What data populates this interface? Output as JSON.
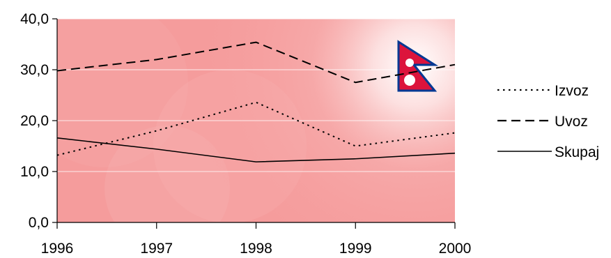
{
  "chart_data": {
    "type": "line",
    "title": "",
    "xlabel": "",
    "ylabel": "",
    "x": [
      1996,
      1997,
      1998,
      1999,
      2000
    ],
    "x_tick_labels": [
      "1996",
      "1997",
      "1998",
      "1999",
      "2000"
    ],
    "y_tick_labels": [
      "0,0",
      "10,0",
      "20,0",
      "30,0",
      "40,0"
    ],
    "ylim": [
      0,
      40
    ],
    "grid": true,
    "legend_position": "right",
    "plot_background": "#f59c9c",
    "series": [
      {
        "name": "Izvoz",
        "values": [
          13.2,
          18.0,
          23.6,
          15.0,
          17.6
        ],
        "style": "dotted",
        "color": "#000000"
      },
      {
        "name": "Uvoz",
        "values": [
          29.8,
          32.0,
          35.4,
          27.5,
          31.0
        ],
        "style": "dashed",
        "color": "#000000"
      },
      {
        "name": "Skupaj",
        "values": [
          16.6,
          14.4,
          11.9,
          12.5,
          13.6
        ],
        "style": "solid",
        "color": "#000000"
      }
    ],
    "decoration": {
      "icon": "nepal-flag-icon",
      "colors": [
        "#dc143c",
        "#003893",
        "#ffffff"
      ]
    }
  }
}
